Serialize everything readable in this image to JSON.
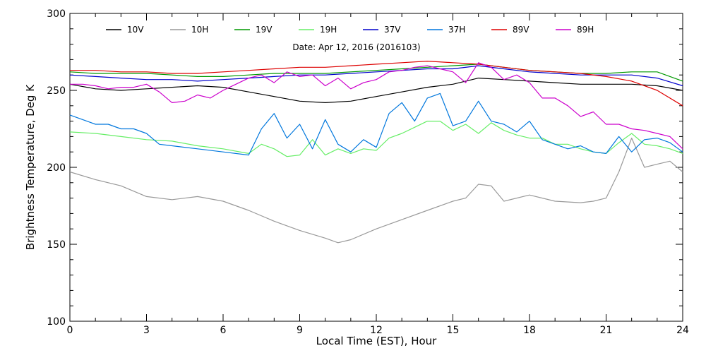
{
  "chart_data": {
    "type": "line",
    "subtitle": "Date: Apr 12, 2016 (2016103)",
    "xlabel": "Local Time (EST), Hour",
    "ylabel": "Brightness Temperature, Deg K",
    "xlim": [
      0,
      24
    ],
    "ylim": [
      100,
      300
    ],
    "xticks": [
      0,
      3,
      6,
      9,
      12,
      15,
      18,
      21,
      24
    ],
    "yticks": [
      100,
      150,
      200,
      250,
      300
    ],
    "grid": false,
    "legend_position": "top",
    "series": [
      {
        "name": "10V",
        "color": "#000000",
        "x": [
          0,
          1,
          2,
          3,
          4,
          5,
          6,
          7,
          8,
          9,
          10,
          11,
          12,
          13,
          14,
          15,
          16,
          17,
          18,
          19,
          20,
          21,
          22,
          23,
          24
        ],
        "y": [
          254,
          251,
          250,
          251,
          252,
          253,
          252,
          249,
          246,
          243,
          242,
          243,
          246,
          249,
          252,
          254,
          258,
          257,
          256,
          255,
          254,
          254,
          254,
          253,
          250
        ]
      },
      {
        "name": "10H",
        "color": "#999999",
        "x": [
          0,
          1,
          2,
          3,
          4,
          5,
          6,
          7,
          8,
          9,
          10,
          10.5,
          11,
          12,
          13,
          14,
          15,
          15.5,
          16,
          16.5,
          17,
          18,
          19,
          20,
          20.5,
          21,
          21.5,
          22,
          22.5,
          23,
          23.5,
          24
        ],
        "y": [
          197,
          192,
          188,
          181,
          179,
          181,
          178,
          172,
          165,
          159,
          154,
          151,
          153,
          160,
          166,
          172,
          178,
          180,
          189,
          188,
          178,
          182,
          178,
          177,
          178,
          180,
          197,
          219,
          200,
          202,
          204,
          197
        ]
      },
      {
        "name": "19V",
        "color": "#009900",
        "x": [
          0,
          1,
          2,
          3,
          4,
          5,
          6,
          7,
          8,
          9,
          10,
          11,
          12,
          13,
          14,
          15,
          16,
          17,
          18,
          19,
          20,
          21,
          22,
          23,
          24
        ],
        "y": [
          262,
          261,
          261,
          261,
          260,
          259,
          259,
          260,
          261,
          261,
          261,
          262,
          263,
          264,
          265,
          266,
          267,
          265,
          263,
          262,
          261,
          261,
          262,
          262,
          256
        ]
      },
      {
        "name": "19H",
        "color": "#66ee66",
        "x": [
          0,
          1,
          2,
          3,
          4,
          5,
          6,
          7,
          7.5,
          8,
          8.5,
          9,
          9.5,
          10,
          10.5,
          11,
          11.5,
          12,
          12.5,
          13,
          13.5,
          14,
          14.5,
          15,
          15.5,
          16,
          16.5,
          17,
          17.5,
          18,
          18.5,
          19,
          19.5,
          20,
          20.5,
          21,
          21.5,
          22,
          22.5,
          23,
          23.5,
          24
        ],
        "y": [
          223,
          222,
          220,
          218,
          217,
          214,
          212,
          209,
          215,
          212,
          207,
          208,
          218,
          208,
          212,
          209,
          212,
          211,
          219,
          222,
          226,
          230,
          230,
          224,
          228,
          222,
          229,
          224,
          221,
          219,
          219,
          215,
          215,
          212,
          210,
          209,
          216,
          222,
          215,
          214,
          212,
          209
        ]
      },
      {
        "name": "37V",
        "color": "#0000cc",
        "x": [
          0,
          1,
          2,
          3,
          4,
          5,
          6,
          7,
          8,
          9,
          10,
          11,
          12,
          13,
          14,
          15,
          16,
          17,
          18,
          19,
          20,
          21,
          22,
          23,
          24
        ],
        "y": [
          260,
          259,
          258,
          257,
          257,
          256,
          257,
          258,
          259,
          260,
          260,
          261,
          262,
          263,
          264,
          264,
          266,
          264,
          262,
          261,
          260,
          260,
          260,
          258,
          253
        ]
      },
      {
        "name": "37H",
        "color": "#0077dd",
        "x": [
          0,
          0.5,
          1,
          1.5,
          2,
          2.5,
          3,
          3.5,
          4,
          5,
          6,
          7,
          7.5,
          8,
          8.5,
          9,
          9.5,
          10,
          10.5,
          11,
          11.5,
          12,
          12.5,
          13,
          13.5,
          14,
          14.5,
          15,
          15.5,
          16,
          16.5,
          17,
          17.5,
          18,
          18.5,
          19,
          19.5,
          20,
          20.5,
          21,
          21.5,
          22,
          22.5,
          23,
          23.5,
          24
        ],
        "y": [
          234,
          231,
          228,
          228,
          225,
          225,
          222,
          215,
          214,
          212,
          210,
          208,
          225,
          235,
          219,
          228,
          212,
          231,
          215,
          210,
          218,
          213,
          235,
          242,
          230,
          245,
          248,
          227,
          230,
          243,
          230,
          228,
          223,
          230,
          218,
          215,
          212,
          214,
          210,
          209,
          220,
          210,
          218,
          219,
          216,
          210
        ]
      },
      {
        "name": "89V",
        "color": "#dd0000",
        "x": [
          0,
          1,
          2,
          3,
          4,
          5,
          6,
          7,
          8,
          9,
          10,
          11,
          12,
          13,
          14,
          15,
          16,
          17,
          18,
          19,
          20,
          21,
          22,
          23,
          24
        ],
        "y": [
          263,
          263,
          262,
          262,
          261,
          261,
          262,
          263,
          264,
          265,
          265,
          266,
          267,
          268,
          269,
          268,
          267,
          265,
          263,
          262,
          261,
          259,
          256,
          250,
          240
        ]
      },
      {
        "name": "89H",
        "color": "#cc00cc",
        "x": [
          0,
          0.5,
          1,
          1.5,
          2,
          2.5,
          3,
          3.5,
          4,
          4.5,
          5,
          5.5,
          6,
          6.5,
          7,
          7.5,
          8,
          8.5,
          9,
          9.5,
          10,
          10.5,
          11,
          11.5,
          12,
          12.5,
          13,
          13.5,
          14,
          14.5,
          15,
          15.5,
          16,
          16.5,
          17,
          17.5,
          18,
          18.5,
          19,
          19.5,
          20,
          20.5,
          21,
          21.5,
          22,
          22.5,
          23,
          23.5,
          24
        ],
        "y": [
          254,
          254,
          253,
          251,
          252,
          252,
          254,
          249,
          242,
          243,
          247,
          245,
          250,
          254,
          258,
          260,
          255,
          262,
          259,
          260,
          253,
          258,
          251,
          255,
          257,
          262,
          263,
          265,
          266,
          264,
          262,
          255,
          268,
          265,
          257,
          260,
          255,
          245,
          245,
          240,
          233,
          236,
          228,
          228,
          225,
          224,
          222,
          220,
          212
        ]
      }
    ]
  }
}
